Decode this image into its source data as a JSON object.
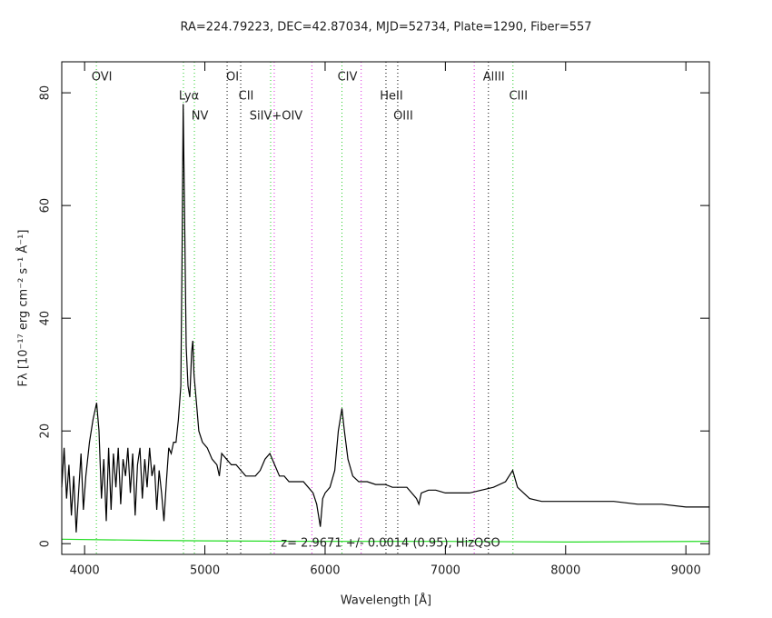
{
  "chart_data": {
    "type": "line",
    "title": "RA=224.79223, DEC=42.87034, MJD=52734, Plate=1290, Fiber=557",
    "xlabel": "Wavelength [Å]",
    "ylabel": "Fλ [10⁻¹⁷ erg cm⁻² s⁻¹ Å⁻¹]",
    "annotation": "z= 2.9671 +/- 0.0014 (0.95), HizQSO",
    "xlim": [
      3810,
      9195
    ],
    "ylim": [
      -1.9,
      85.5
    ],
    "xticks": [
      4000,
      5000,
      6000,
      7000,
      8000,
      9000
    ],
    "yticks": [
      0,
      20,
      40,
      60,
      80
    ],
    "series": [
      {
        "color": "#000000",
        "x": [
          3810,
          3830,
          3850,
          3870,
          3890,
          3910,
          3930,
          3950,
          3970,
          3990,
          4010,
          4040,
          4070,
          4100,
          4120,
          4140,
          4160,
          4180,
          4200,
          4220,
          4240,
          4260,
          4280,
          4300,
          4320,
          4340,
          4360,
          4380,
          4400,
          4420,
          4440,
          4460,
          4480,
          4500,
          4520,
          4540,
          4560,
          4580,
          4600,
          4620,
          4640,
          4660,
          4680,
          4700,
          4720,
          4740,
          4760,
          4780,
          4800,
          4810,
          4820,
          4830,
          4845,
          4860,
          4875,
          4890,
          4900,
          4910,
          4930,
          4950,
          4980,
          5020,
          5060,
          5100,
          5120,
          5140,
          5180,
          5220,
          5260,
          5300,
          5340,
          5380,
          5420,
          5460,
          5500,
          5540,
          5580,
          5620,
          5660,
          5700,
          5740,
          5780,
          5820,
          5860,
          5900,
          5930,
          5960,
          5980,
          6000,
          6040,
          6080,
          6110,
          6140,
          6160,
          6190,
          6230,
          6280,
          6350,
          6420,
          6500,
          6560,
          6620,
          6680,
          6720,
          6760,
          6780,
          6800,
          6860,
          6920,
          7000,
          7100,
          7200,
          7300,
          7400,
          7500,
          7560,
          7600,
          7700,
          7800,
          8000,
          8200,
          8400,
          8600,
          8800,
          9000,
          9195
        ],
        "values": [
          10,
          17,
          8,
          14,
          5,
          12,
          2,
          9,
          16,
          6,
          12,
          18,
          22,
          25,
          20,
          8,
          15,
          4,
          17,
          6,
          16,
          10,
          17,
          7,
          15,
          12,
          17,
          9,
          16,
          5,
          14,
          17,
          8,
          15,
          10,
          17,
          12,
          14,
          6,
          13,
          9,
          4,
          11,
          17,
          16,
          18,
          18,
          22,
          28,
          50,
          78,
          60,
          35,
          28,
          26,
          34,
          36,
          30,
          25,
          20,
          18,
          17,
          15,
          14,
          12,
          16,
          15,
          14,
          14,
          13,
          12,
          12,
          12,
          13,
          15,
          16,
          14,
          12,
          12,
          11,
          11,
          11,
          11,
          10,
          9,
          7,
          3,
          8,
          9,
          10,
          13,
          20,
          24,
          20,
          15,
          12,
          11,
          11,
          10.5,
          10.5,
          10,
          10,
          10,
          9,
          8,
          7,
          9,
          9.5,
          9.5,
          9,
          9,
          9,
          9.5,
          10,
          11,
          13,
          10,
          8,
          7.5,
          7.5,
          7.5,
          7.5,
          7,
          7,
          6.5,
          6.5
        ]
      },
      {
        "color": "#22dd22",
        "x": [
          3810,
          4500,
          5000,
          6000,
          7000,
          8000,
          9195
        ],
        "values": [
          0.8,
          0.6,
          0.5,
          0.4,
          0.4,
          0.3,
          0.4
        ]
      }
    ],
    "lines": [
      {
        "label": "OVI",
        "wavelength": 4098,
        "color": "#22cc22"
      },
      {
        "label": "Lyα",
        "wavelength": 4822,
        "color": "#22cc22"
      },
      {
        "label": "NV",
        "wavelength": 4913,
        "color": "#22cc22"
      },
      {
        "label": "OI",
        "wavelength": 5185,
        "color": "#000000"
      },
      {
        "label": "CII",
        "wavelength": 5298,
        "color": "#000000"
      },
      {
        "label": "SiIV+OIV",
        "wavelength": 5547,
        "color": "#22cc22"
      },
      {
        "label": "CIV",
        "wavelength": 6140,
        "color": "#22cc22"
      },
      {
        "label": "HeII",
        "wavelength": 6506,
        "color": "#000000"
      },
      {
        "label": "OIII",
        "wavelength": 6604,
        "color": "#000000"
      },
      {
        "label": "AlIII",
        "wavelength": 7358,
        "color": "#000000"
      },
      {
        "label": "CIII",
        "wavelength": 7562,
        "color": "#22cc22"
      }
    ],
    "sky_lines": {
      "color": "#dd22dd",
      "wavelengths": [
        5577,
        5890,
        6300,
        7240
      ]
    }
  }
}
